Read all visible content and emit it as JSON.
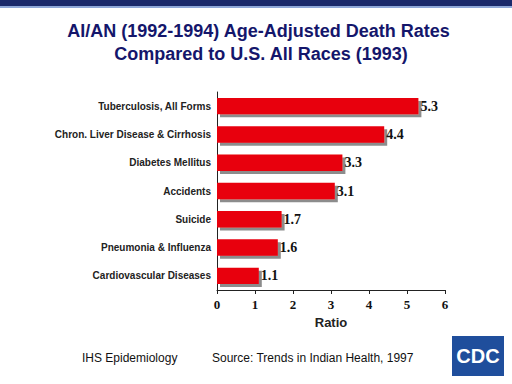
{
  "chart_data": {
    "type": "bar",
    "orientation": "horizontal",
    "title": "AI/AN (1992-1994) Age-Adjusted Death Rates Compared to U.S. All Races (1993)",
    "categories": [
      "Tuberculosis, All Forms",
      "Chron. Liver Disease & Cirrhosis",
      "Diabetes Mellitus",
      "Accidents",
      "Suicide",
      "Pneumonia & Influenza",
      "Cardiovascular Diseases"
    ],
    "values": [
      5.3,
      4.4,
      3.3,
      3.1,
      1.7,
      1.6,
      1.1
    ],
    "color": "#e8000b",
    "x_label": "Ratio",
    "xlim": [
      0,
      6
    ],
    "xticks": [
      0,
      1,
      2,
      3,
      4,
      5,
      6
    ],
    "grid": false,
    "data_labels": true,
    "annotations": [
      "IHS Epidemiology",
      "Source: Trends in Indian Health, 1997",
      "CDC"
    ]
  }
}
